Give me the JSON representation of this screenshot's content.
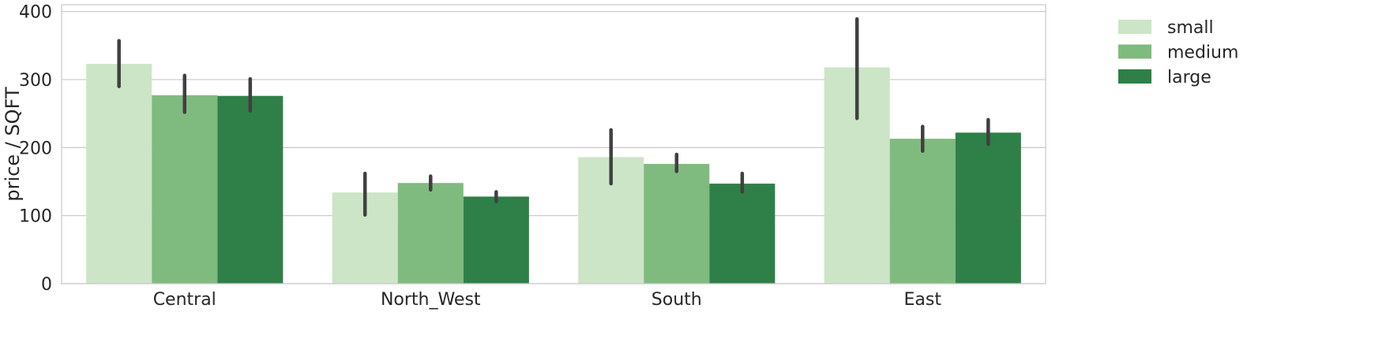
{
  "chart_data": {
    "type": "bar",
    "title": "",
    "xlabel": "",
    "ylabel": "price / SQFT",
    "categories": [
      "Central",
      "North_West",
      "South",
      "East"
    ],
    "ylim": [
      0,
      410
    ],
    "yticks": [
      0,
      100,
      200,
      300,
      400
    ],
    "grid": "horizontal",
    "legend_position": "right, outside plot",
    "series": [
      {
        "name": "small",
        "color": "#cce5c6",
        "values": [
          323,
          134,
          186,
          318
        ],
        "ci_low": [
          290,
          101,
          147,
          243
        ],
        "ci_high": [
          357,
          162,
          226,
          389
        ]
      },
      {
        "name": "medium",
        "color": "#7fbb7e",
        "values": [
          277,
          148,
          176,
          213
        ],
        "ci_low": [
          252,
          138,
          165,
          195
        ],
        "ci_high": [
          306,
          158,
          190,
          231
        ]
      },
      {
        "name": "large",
        "color": "#2f7f48",
        "values": [
          276,
          128,
          147,
          222
        ],
        "ci_low": [
          254,
          121,
          135,
          205
        ],
        "ci_high": [
          301,
          135,
          162,
          241
        ]
      }
    ],
    "errorbar_color": "#404040"
  }
}
